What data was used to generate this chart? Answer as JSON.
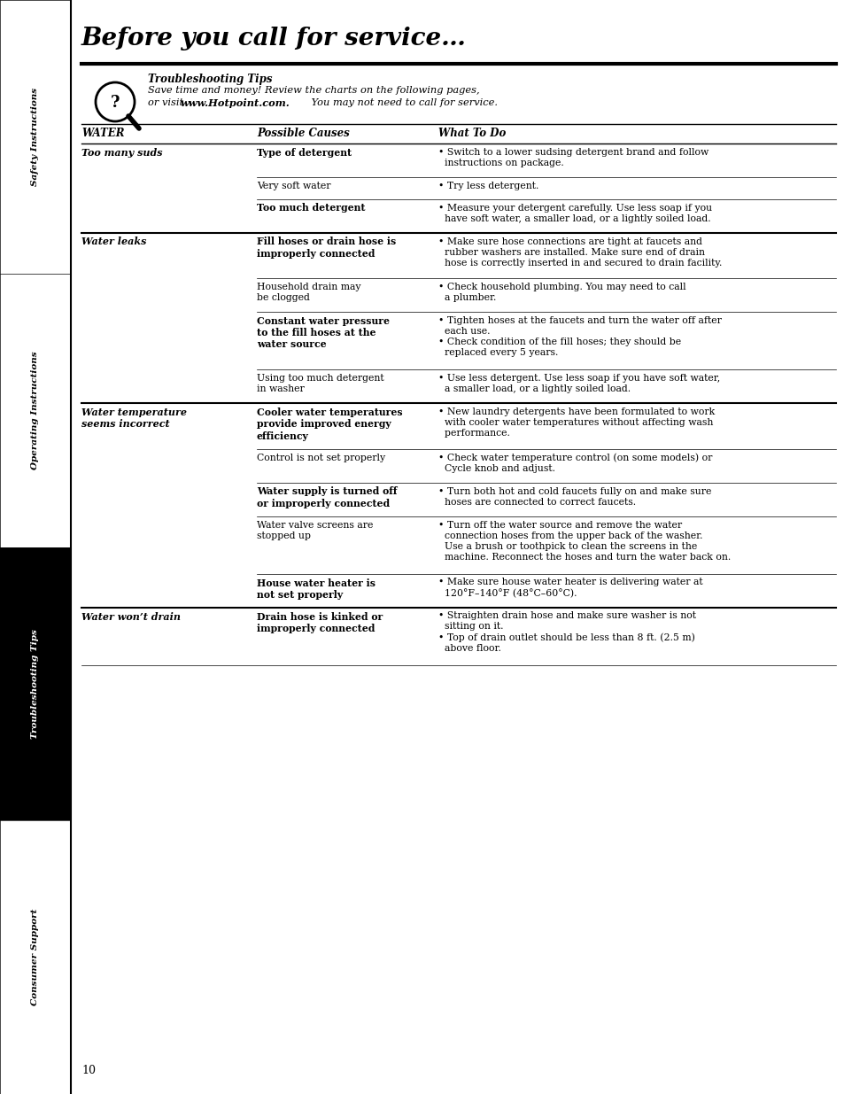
{
  "title": "Before you call for service…",
  "page_number": "10",
  "sidebar_labels": [
    "Safety Instructions",
    "Operating Instructions",
    "Troubleshooting Tips",
    "Consumer Support"
  ],
  "sidebar_active": 2,
  "tip_title": "Troubleshooting Tips",
  "tip_line1": "Save time and money! Review the charts on the following pages,",
  "tip_line2_pre": "or visit ",
  "tip_line2_bold": "www.Hotpoint.com.",
  "tip_line2_post": " You may not need to call for service.",
  "col_headers": [
    "WATER",
    "Possible Causes",
    "What To Do"
  ],
  "rows": [
    {
      "water": "Too many suds",
      "causes": [
        "Type of detergent",
        "Very soft water",
        "Too much detergent"
      ],
      "causes_bold": [
        true,
        false,
        true
      ],
      "actions": [
        "• Switch to a lower sudsing detergent brand and follow\n  instructions on package.",
        "• Try less detergent.",
        "• Measure your detergent carefully. Use less soap if you\n  have soft water, a smaller load, or a lightly soiled load."
      ],
      "major_divider_after": true
    },
    {
      "water": "Water leaks",
      "causes": [
        "Fill hoses or drain hose is\nimproperly connected",
        "Household drain may\nbe clogged",
        "Constant water pressure\nto the fill hoses at the\nwater source",
        "Using too much detergent\nin washer"
      ],
      "causes_bold": [
        true,
        false,
        true,
        false
      ],
      "actions": [
        "• Make sure hose connections are tight at faucets and\n  rubber washers are installed. Make sure end of drain\n  hose is correctly inserted in and secured to drain facility.",
        "• Check household plumbing. You may need to call\n  a plumber.",
        "• Tighten hoses at the faucets and turn the water off after\n  each use.\n• Check condition of the fill hoses; they should be\n  replaced every 5 years.",
        "• Use less detergent. Use less soap if you have soft water,\n  a smaller load, or a lightly soiled load."
      ],
      "major_divider_after": true
    },
    {
      "water": "Water temperature\nseems incorrect",
      "causes": [
        "Cooler water temperatures\nprovide improved energy\nefficiency",
        "Control is not set properly",
        "Water supply is turned off\nor improperly connected",
        "Water valve screens are\nstopped up",
        "House water heater is\nnot set properly"
      ],
      "causes_bold": [
        true,
        false,
        true,
        false,
        true
      ],
      "actions": [
        "• New laundry detergents have been formulated to work\n  with cooler water temperatures without affecting wash\n  performance.",
        "• Check water temperature control (on some models) or\n  Cycle knob and adjust.",
        "• Turn both hot and cold faucets fully on and make sure\n  hoses are connected to correct faucets.",
        "• Turn off the water source and remove the water\n  connection hoses from the upper back of the washer.\n  Use a brush or toothpick to clean the screens in the\n  machine. Reconnect the hoses and turn the water back on.",
        "• Make sure house water heater is delivering water at\n  120°F–140°F (48°C–60°C)."
      ],
      "major_divider_after": true
    },
    {
      "water": "Water won’t drain",
      "causes": [
        "Drain hose is kinked or\nimproperly connected"
      ],
      "causes_bold": [
        true
      ],
      "actions": [
        "• Straighten drain hose and make sure washer is not\n  sitting on it.\n• Top of drain outlet should be less than 8 ft. (2.5 m)\n  above floor."
      ],
      "major_divider_after": false
    }
  ]
}
